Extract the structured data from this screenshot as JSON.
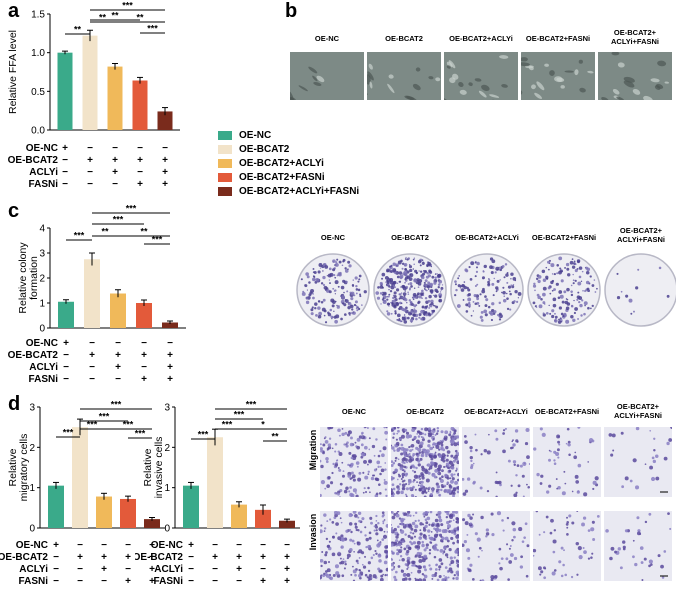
{
  "panels": {
    "a": "a",
    "b": "b",
    "c": "c",
    "d": "d"
  },
  "groups": [
    "OE-NC",
    "OE-BCAT2",
    "OE-BCAT2+ACLYi",
    "OE-BCAT2+FASNi",
    "OE-BCAT2+ACLYi+FASNi"
  ],
  "group_colors": [
    "#3aaa8a",
    "#f2e3c9",
    "#f0b95a",
    "#e35a3a",
    "#7a2b1c"
  ],
  "treatment_rows": [
    {
      "label": "OE-NC",
      "marks": [
        "+",
        "−",
        "−",
        "−",
        "−"
      ]
    },
    {
      "label": "OE-BCAT2",
      "marks": [
        "−",
        "+",
        "+",
        "+",
        "+"
      ]
    },
    {
      "label": "ACLYi",
      "marks": [
        "−",
        "−",
        "+",
        "−",
        "+"
      ]
    },
    {
      "label": "FASNi",
      "marks": [
        "−",
        "−",
        "−",
        "+",
        "+"
      ]
    }
  ],
  "chart_data": [
    {
      "type": "bar",
      "panel": "a",
      "ylabel": "Relative FFA level",
      "ylim": [
        0,
        1.5
      ],
      "yticks": [
        "0.0",
        "0.5",
        "1.0",
        "1.5"
      ],
      "categories": [
        "OE-NC",
        "OE-BCAT2",
        "OE-BCAT2+ACLYi",
        "OE-BCAT2+FASNi",
        "OE-BCAT2+ACLYi+FASNi"
      ],
      "values": [
        1.0,
        1.22,
        0.82,
        0.64,
        0.24
      ],
      "errors": [
        0.02,
        0.07,
        0.04,
        0.04,
        0.05
      ],
      "sig": [
        {
          "from": 0,
          "to": 1,
          "label": "**"
        },
        {
          "from": 1,
          "to": 4,
          "label": "***"
        },
        {
          "from": 1,
          "to": 3,
          "label": "**"
        },
        {
          "from": 1,
          "to": 2,
          "label": "**"
        },
        {
          "from": 2,
          "to": 4,
          "label": "**"
        },
        {
          "from": 3,
          "to": 4,
          "label": "***"
        }
      ]
    },
    {
      "type": "bar",
      "panel": "c",
      "ylabel": "Relative colony formation",
      "ylim": [
        0,
        4
      ],
      "yticks": [
        "0",
        "1",
        "2",
        "3",
        "4"
      ],
      "categories": [
        "OE-NC",
        "OE-BCAT2",
        "OE-BCAT2+ACLYi",
        "OE-BCAT2+FASNi",
        "OE-BCAT2+ACLYi+FASNi"
      ],
      "values": [
        1.05,
        2.75,
        1.38,
        1.0,
        0.22
      ],
      "errors": [
        0.08,
        0.25,
        0.15,
        0.12,
        0.06
      ],
      "sig": [
        {
          "from": 0,
          "to": 1,
          "label": "***"
        },
        {
          "from": 1,
          "to": 4,
          "label": "***"
        },
        {
          "from": 1,
          "to": 3,
          "label": "***"
        },
        {
          "from": 1,
          "to": 2,
          "label": "**"
        },
        {
          "from": 2,
          "to": 4,
          "label": "**"
        },
        {
          "from": 3,
          "to": 4,
          "label": "***"
        }
      ]
    },
    {
      "type": "bar",
      "panel": "d-migration",
      "ylabel": "Relative migratory cells",
      "ylim": [
        0,
        3
      ],
      "yticks": [
        "0",
        "1",
        "2",
        "3"
      ],
      "categories": [
        "OE-NC",
        "OE-BCAT2",
        "OE-BCAT2+ACLYi",
        "OE-BCAT2+FASNi",
        "OE-BCAT2+ACLYi+FASNi"
      ],
      "values": [
        1.05,
        2.5,
        0.78,
        0.72,
        0.22
      ],
      "errors": [
        0.08,
        0.2,
        0.08,
        0.07,
        0.04
      ],
      "sig": [
        {
          "from": 0,
          "to": 1,
          "label": "***"
        },
        {
          "from": 1,
          "to": 4,
          "label": "***"
        },
        {
          "from": 1,
          "to": 3,
          "label": "***"
        },
        {
          "from": 1,
          "to": 2,
          "label": "***"
        },
        {
          "from": 2,
          "to": 4,
          "label": "***"
        },
        {
          "from": 3,
          "to": 4,
          "label": "***"
        }
      ]
    },
    {
      "type": "bar",
      "panel": "d-invasion",
      "ylabel": "Relative invasive cells",
      "ylim": [
        0,
        3
      ],
      "yticks": [
        "0",
        "1",
        "2",
        "3"
      ],
      "categories": [
        "OE-NC",
        "OE-BCAT2",
        "OE-BCAT2+ACLYi",
        "OE-BCAT2+FASNi",
        "OE-BCAT2+ACLYi+FASNi"
      ],
      "values": [
        1.05,
        2.25,
        0.58,
        0.45,
        0.18
      ],
      "errors": [
        0.08,
        0.2,
        0.07,
        0.12,
        0.04
      ],
      "sig": [
        {
          "from": 0,
          "to": 1,
          "label": "***"
        },
        {
          "from": 1,
          "to": 4,
          "label": "***"
        },
        {
          "from": 1,
          "to": 3,
          "label": "***"
        },
        {
          "from": 1,
          "to": 2,
          "label": "***"
        },
        {
          "from": 2,
          "to": 4,
          "label": "*"
        },
        {
          "from": 3,
          "to": 4,
          "label": "**"
        }
      ]
    }
  ],
  "panel_b": {
    "columns": [
      "OE-NC",
      "OE-BCAT2",
      "OE-BCAT2+ACLYi",
      "OE-BCAT2+FASNi",
      "OE-BCAT2+\nACLYi+FASNi"
    ]
  },
  "panel_c_images": {
    "columns": [
      "OE-NC",
      "OE-BCAT2",
      "OE-BCAT2+ACLYi",
      "OE-BCAT2+FASNi",
      "OE-BCAT2+\nACLYi+FASNi"
    ],
    "densities": [
      0.45,
      0.9,
      0.35,
      0.4,
      0.03
    ]
  },
  "panel_d_images": {
    "columns": [
      "OE-NC",
      "OE-BCAT2",
      "OE-BCAT2+ACLYi",
      "OE-BCAT2+FASNi",
      "OE-BCAT2+\nACLYi+FASNi"
    ],
    "rows": [
      "Migration",
      "Invasion"
    ],
    "densities": [
      [
        0.4,
        1.0,
        0.15,
        0.12,
        0.06
      ],
      [
        0.45,
        0.8,
        0.15,
        0.12,
        0.08
      ]
    ]
  }
}
